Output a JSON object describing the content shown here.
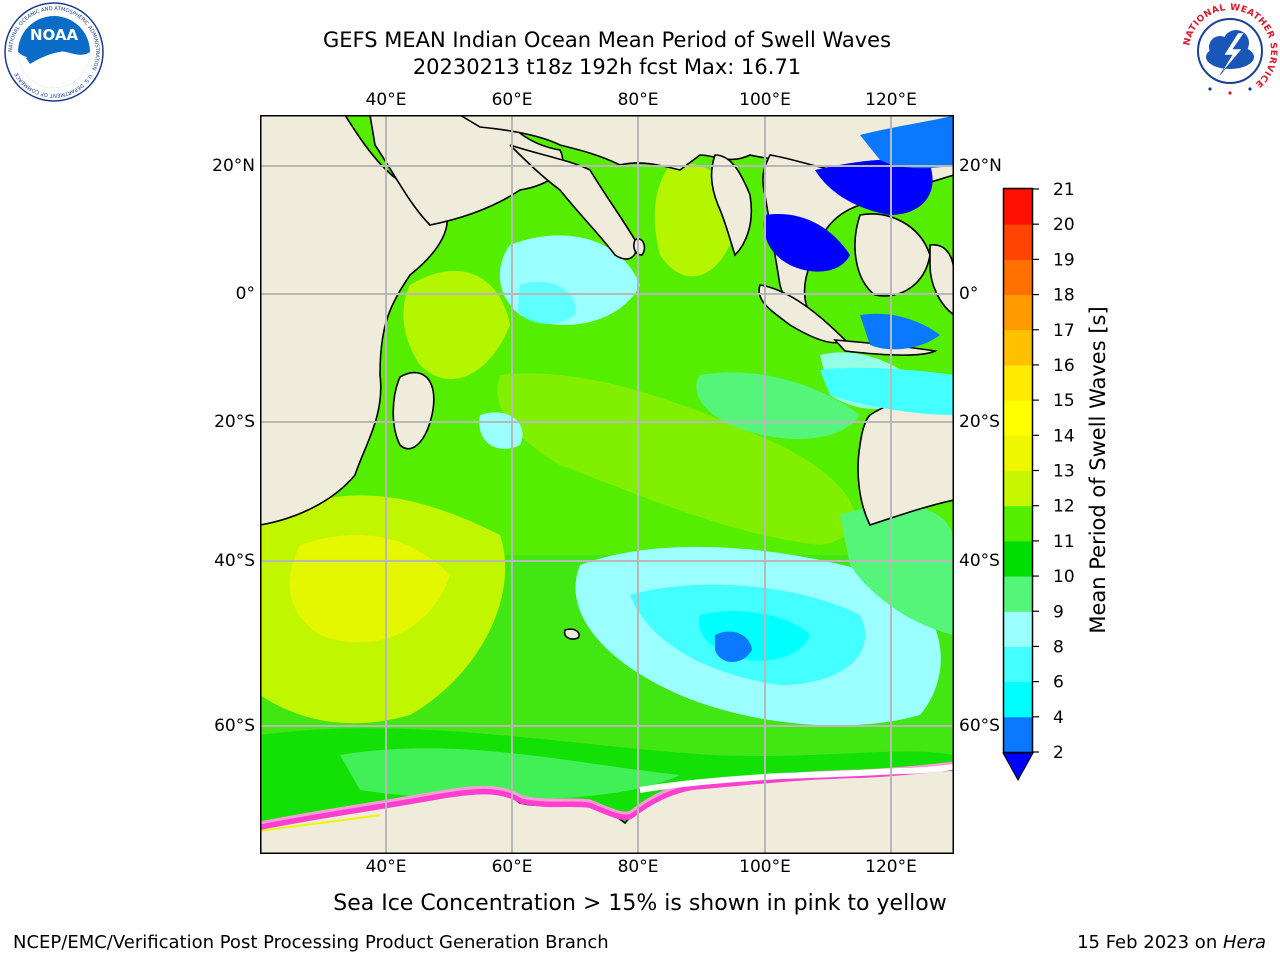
{
  "header": {
    "title_line1": "GEFS MEAN Indian Ocean Mean Period of Swell Waves",
    "title_line2": "20230213 t18z 192h fcst   Max: 16.71"
  },
  "logos": {
    "noara_text": "NOAA",
    "noaa_ring_text": "NATIONAL OCEANIC AND ATMOSPHERIC ADMINISTRATION · U.S. DEPARTMENT OF COMMERCE",
    "nws_ring_text": "NATIONAL WEATHER SERVICE"
  },
  "map": {
    "lon_labels": [
      "40°E",
      "60°E",
      "80°E",
      "100°E",
      "120°E"
    ],
    "lat_labels": [
      "20°N",
      "0°",
      "20°S",
      "40°S",
      "60°S"
    ],
    "colors": {
      "land": "#efecdc",
      "grid": "#b8b8b8"
    }
  },
  "colorbar": {
    "label": "Mean Period of Swell Waves [s]",
    "ticks": [
      "2",
      "4",
      "6",
      "8",
      "9",
      "10",
      "11",
      "12",
      "13",
      "14",
      "15",
      "16",
      "17",
      "18",
      "19",
      "20",
      "21"
    ],
    "colors": [
      "#0a78ff",
      "#00ffff",
      "#44ffff",
      "#9cffff",
      "#55f57a",
      "#00dd00",
      "#55ee00",
      "#c6f700",
      "#eef700",
      "#ffff00",
      "#ffeb00",
      "#ffc000",
      "#ff9a00",
      "#ff7000",
      "#ff4300",
      "#ff1000"
    ],
    "under_color": "#0000ff"
  },
  "caption": "Sea Ice Concentration > 15% is shown in pink to yellow",
  "footer": {
    "left": "NCEP/EMC/Verification Post Processing Product Generation Branch",
    "right_date": "15 Feb 2023 on ",
    "right_host": "Hera"
  }
}
